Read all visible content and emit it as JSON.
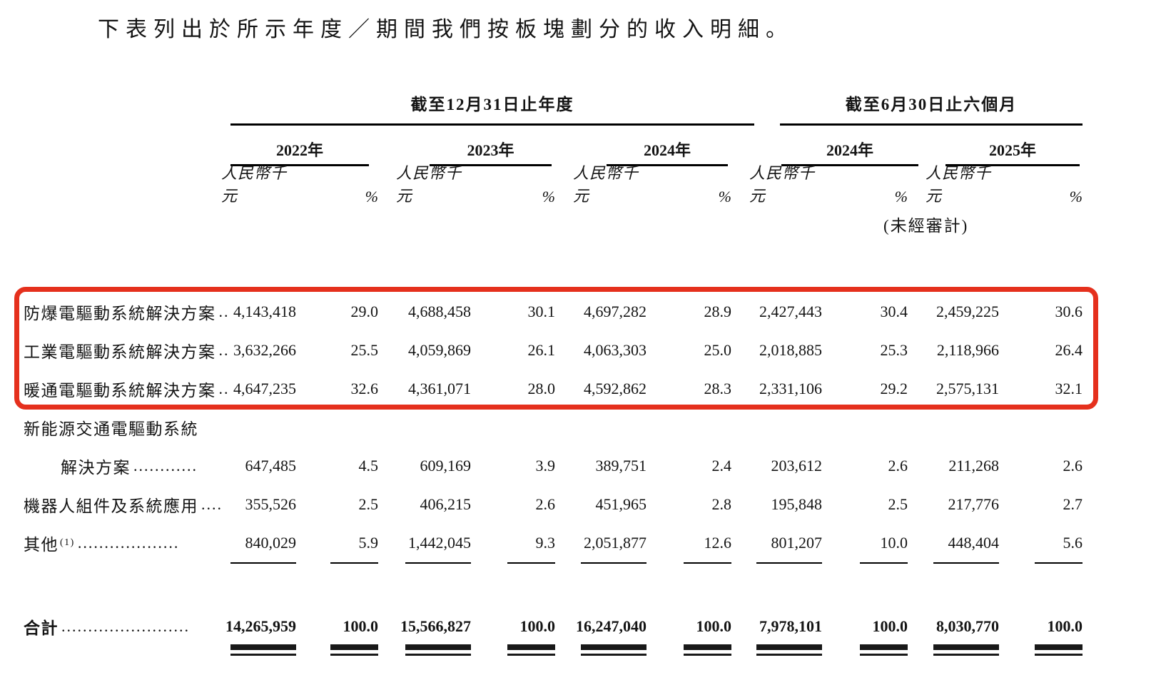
{
  "title": "下表列出於所示年度／期間我們按板塊劃分的收入明細。",
  "highlight_color": "#e5301d",
  "table": {
    "groups": [
      {
        "label": "截至12月31日止年度"
      },
      {
        "label": "截至6月30日止六個月"
      }
    ],
    "years": [
      "2022年",
      "2023年",
      "2024年",
      "2024年",
      "2025年"
    ],
    "unit_label": "人民幣千元",
    "pct_label": "%",
    "unaudited_note": "(未經審計)",
    "rows": [
      {
        "label": "防爆電驅動系統解決方案",
        "dots": "..",
        "values": [
          "4,143,418",
          "29.0",
          "4,688,458",
          "30.1",
          "4,697,282",
          "28.9",
          "2,427,443",
          "30.4",
          "2,459,225",
          "30.6"
        ],
        "highlight": true
      },
      {
        "label": "工業電驅動系統解決方案",
        "dots": "..",
        "values": [
          "3,632,266",
          "25.5",
          "4,059,869",
          "26.1",
          "4,063,303",
          "25.0",
          "2,018,885",
          "25.3",
          "2,118,966",
          "26.4"
        ],
        "highlight": true
      },
      {
        "label": "暖通電驅動系統解決方案",
        "dots": "..",
        "values": [
          "4,647,235",
          "32.6",
          "4,361,071",
          "28.0",
          "4,592,862",
          "28.3",
          "2,331,106",
          "29.2",
          "2,575,131",
          "32.1"
        ],
        "highlight": true
      },
      {
        "label": "新能源交通電驅動系統",
        "dots": "",
        "values": []
      },
      {
        "label": "解決方案",
        "dots": " ............",
        "indent": true,
        "values": [
          "647,485",
          "4.5",
          "609,169",
          "3.9",
          "389,751",
          "2.4",
          "203,612",
          "2.6",
          "211,268",
          "2.6"
        ]
      },
      {
        "label": "機器人組件及系統應用",
        "dots": "....",
        "values": [
          "355,526",
          "2.5",
          "406,215",
          "2.6",
          "451,965",
          "2.8",
          "195,848",
          "2.5",
          "217,776",
          "2.7"
        ]
      },
      {
        "label": "其他",
        "sup": "(1)",
        "dots": " ...................",
        "values": [
          "840,029",
          "5.9",
          "1,442,045",
          "9.3",
          "2,051,877",
          "12.6",
          "801,207",
          "10.0",
          "448,404",
          "5.6"
        ]
      }
    ],
    "total": {
      "label": "合計",
      "dots": "........................",
      "values": [
        "14,265,959",
        "100.0",
        "15,566,827",
        "100.0",
        "16,247,040",
        "100.0",
        "7,978,101",
        "100.0",
        "8,030,770",
        "100.0"
      ]
    }
  }
}
